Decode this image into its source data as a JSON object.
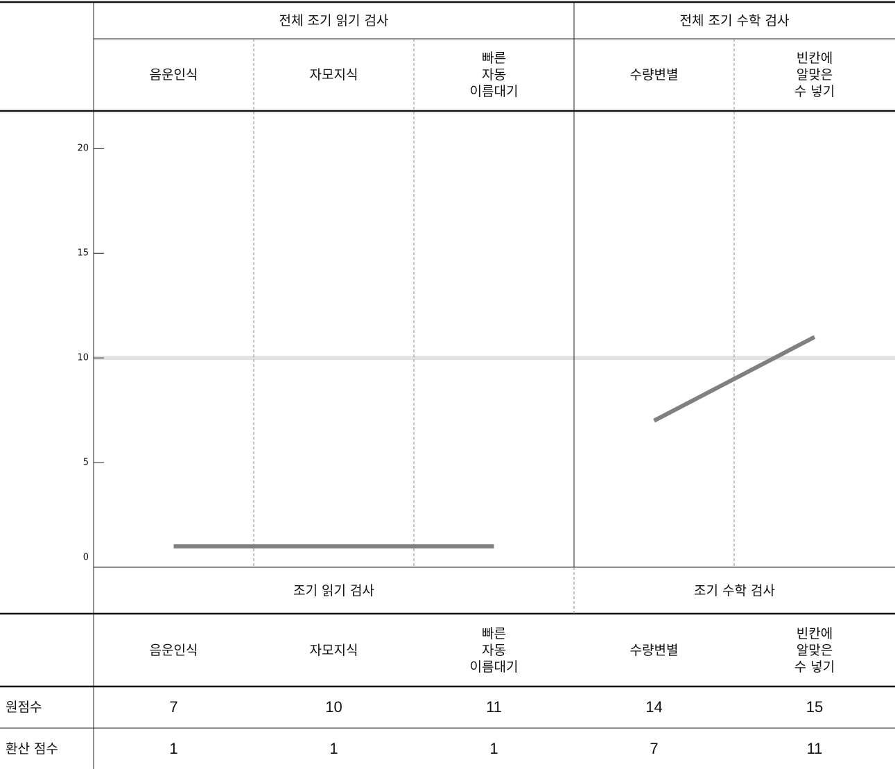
{
  "chart_data": {
    "type": "line",
    "top_sections": [
      "전체 조기 읽기 검사",
      "전체 조기 수학 검사"
    ],
    "bottom_sections": [
      "조기 읽기 검사",
      "조기 수학 검사"
    ],
    "categories": [
      "음운인식",
      "자모지식",
      "빠른\n자동\n이름대기",
      "수량변별",
      "빈칸에\n알맞은\n수 넣기"
    ],
    "series": [
      {
        "color": "#808080",
        "values": [
          1,
          1,
          1,
          null,
          null
        ]
      },
      {
        "color": "#808080",
        "values": [
          null,
          null,
          null,
          7,
          11
        ]
      }
    ],
    "ylim": [
      0,
      21.8
    ],
    "yticks": [
      0,
      5,
      10,
      15,
      20
    ],
    "reference": 10,
    "table": {
      "rows": [
        {
          "label": "원점수",
          "values": [
            7,
            10,
            11,
            14,
            15
          ]
        },
        {
          "label": "환산 점수",
          "values": [
            1,
            1,
            1,
            7,
            11
          ]
        }
      ]
    }
  }
}
